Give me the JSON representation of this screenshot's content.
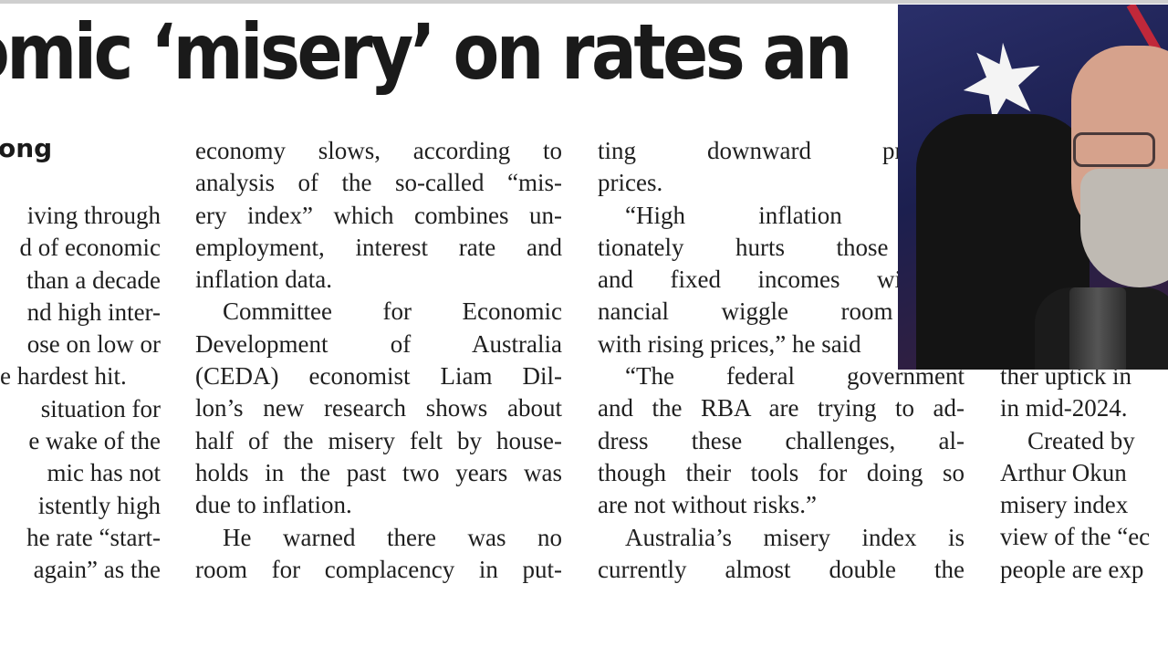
{
  "article": {
    "headline": "omic ‘misery’ on rates an",
    "byline": "ong",
    "col1": [
      "iving through",
      "d of economic",
      "than a decade",
      "nd high inter-",
      "ose on low or",
      "e hardest hit.",
      "situation for",
      "e wake of the",
      "mic has not",
      "istently high",
      "he rate “start-",
      "again” as the"
    ],
    "col2": [
      "economy slows, according to",
      "analysis of the so-called “mis-",
      "ery index” which combines un-",
      "employment, interest rate and",
      "inflation data.",
      "Committee for Economic",
      "Development of Australia",
      "(CEDA) economist Liam Dil-",
      "lon’s new research shows about",
      "half of the misery felt by house-",
      "holds in the past two years was",
      "due to inflation.",
      "He warned there was no",
      "room for complacency in put-"
    ],
    "col3": [
      "ting downward pressure",
      "prices.",
      "“High inflation dispr",
      "tionately hurts those on",
      "and fixed incomes with l",
      "nancial wiggle room to",
      "with rising prices,” he said",
      "“The federal government",
      "and the RBA are trying to ad-",
      "dress these challenges, al-",
      "though their tools for doing so",
      "are not without risks.”",
      "Australia’s misery index is",
      "currently almost double the"
    ],
    "col4": [
      "ther uptick in",
      "in mid-2024.",
      "Created by",
      "Arthur Okun",
      "misery index",
      "view of the “ec",
      "people are exp"
    ]
  },
  "colors": {
    "text": "#1f1f1f",
    "headline": "#1a1a1a",
    "webcam_bg": "#1c1f4f"
  },
  "icons": {
    "flag_star": "star-icon"
  }
}
